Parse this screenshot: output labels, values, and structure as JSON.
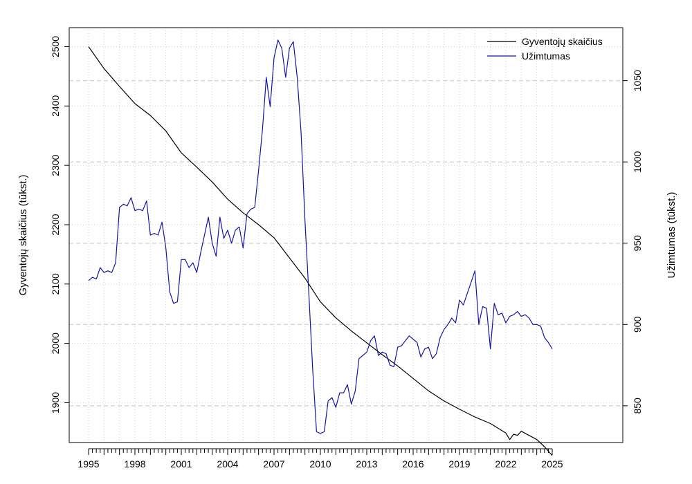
{
  "chart_data": {
    "type": "line",
    "title": "",
    "x_range": [
      1995,
      2025
    ],
    "x_ticks": [
      "1995",
      "1998",
      "2001",
      "2004",
      "2007",
      "2010",
      "2013",
      "2016",
      "2019",
      "2022",
      "2025"
    ],
    "y_left": {
      "label": "Gyventojų skaičius (tūkst.)",
      "range": [
        1833,
        2532
      ],
      "ticks": [
        "1900",
        "2000",
        "2100",
        "2200",
        "2300",
        "2400",
        "2500"
      ]
    },
    "y_right": {
      "label": "Užimtumas (tūkst.)",
      "range": [
        827.4,
        1082.6
      ],
      "ticks": [
        "850",
        "900",
        "950",
        "1000",
        "1050"
      ]
    },
    "grid": true,
    "legend_position": "top-right",
    "series": [
      {
        "name": "Gyventojų skaičius",
        "axis": "left",
        "color": "#000000",
        "x": [
          1995,
          1996,
          1997,
          1998,
          1999,
          2000,
          2001,
          2002,
          2003,
          2004,
          2005,
          2006,
          2007,
          2008,
          2009,
          2010,
          2011,
          2012,
          2013,
          2014,
          2015,
          2016,
          2017,
          2018,
          2019,
          2020,
          2021,
          2022,
          2022.25,
          2022.5,
          2022.75,
          2023,
          2023.5,
          2024,
          2024.5,
          2025
        ],
        "values": [
          2500,
          2463,
          2433,
          2404,
          2384,
          2358,
          2321,
          2297,
          2272,
          2243,
          2220,
          2200,
          2178,
          2144,
          2110,
          2070,
          2043,
          2021,
          2001,
          1981,
          1962,
          1941,
          1920,
          1903,
          1889,
          1876,
          1865,
          1849,
          1838,
          1847,
          1845,
          1852,
          1845,
          1838,
          1826,
          1811
        ]
      },
      {
        "name": "Užimtumas",
        "axis": "right",
        "color": "#1414a0",
        "x": [
          1995,
          1995.25,
          1995.5,
          1995.75,
          1996,
          1996.25,
          1996.5,
          1996.75,
          1997,
          1997.25,
          1997.5,
          1997.75,
          1998,
          1998.25,
          1998.5,
          1998.75,
          1999,
          1999.25,
          1999.5,
          1999.75,
          2000,
          2000.25,
          2000.5,
          2000.75,
          2001,
          2001.25,
          2001.5,
          2001.75,
          2002,
          2002.25,
          2002.5,
          2002.75,
          2003,
          2003.25,
          2003.5,
          2003.75,
          2004,
          2004.25,
          2004.5,
          2004.75,
          2005,
          2005.25,
          2005.5,
          2005.75,
          2006,
          2006.25,
          2006.5,
          2006.75,
          2007,
          2007.25,
          2007.5,
          2007.75,
          2008,
          2008.25,
          2008.5,
          2008.75,
          2009,
          2009.25,
          2009.5,
          2009.75,
          2010,
          2010.25,
          2010.5,
          2010.75,
          2011,
          2011.25,
          2011.5,
          2011.75,
          2012,
          2012.25,
          2012.5,
          2012.75,
          2013,
          2013.25,
          2013.5,
          2013.75,
          2014,
          2014.25,
          2014.5,
          2014.75,
          2015,
          2015.25,
          2015.5,
          2015.75,
          2016,
          2016.25,
          2016.5,
          2016.75,
          2017,
          2017.25,
          2017.5,
          2017.75,
          2018,
          2018.25,
          2018.5,
          2018.75,
          2019,
          2019.25,
          2019.5,
          2019.75,
          2020,
          2020.25,
          2020.5,
          2020.75,
          2021,
          2021.25,
          2021.5,
          2021.75,
          2022,
          2022.25,
          2022.5,
          2022.75,
          2023,
          2023.25,
          2023.5,
          2023.75,
          2024,
          2024.25,
          2024.5,
          2024.75,
          2025
        ],
        "values": [
          927,
          929,
          928,
          935,
          932,
          933,
          932,
          938,
          972,
          974,
          973,
          978,
          970,
          971,
          970,
          976,
          955,
          956,
          955,
          963,
          947,
          920,
          913,
          914,
          940,
          940,
          935,
          938,
          932,
          944,
          955,
          966,
          950,
          942,
          966,
          953,
          958,
          950,
          958,
          960,
          947,
          968,
          971,
          972,
          995,
          1020,
          1052,
          1034,
          1064,
          1075,
          1070,
          1052,
          1070,
          1074,
          1052,
          1018,
          964,
          919,
          873,
          834,
          833,
          834,
          853,
          855,
          849,
          858,
          858,
          863,
          851,
          859,
          879,
          881,
          883,
          890,
          893,
          881,
          883,
          882,
          875,
          874,
          886,
          887,
          890,
          893,
          891,
          889,
          880,
          885,
          886,
          879,
          882,
          892,
          897,
          900,
          904,
          901,
          915,
          912,
          919,
          926,
          933,
          900,
          911,
          910,
          885,
          913,
          906,
          907,
          901,
          905,
          906,
          908,
          905,
          906,
          904,
          900,
          900,
          899,
          892,
          889,
          885
        ]
      }
    ],
    "legend": [
      "Gyventojų skaičius",
      "Užimtumas"
    ],
    "axis_titles": {
      "left": "Gyventojų skaičius (tūkst.)",
      "right": "Užimtumas (tūkst.)"
    }
  }
}
